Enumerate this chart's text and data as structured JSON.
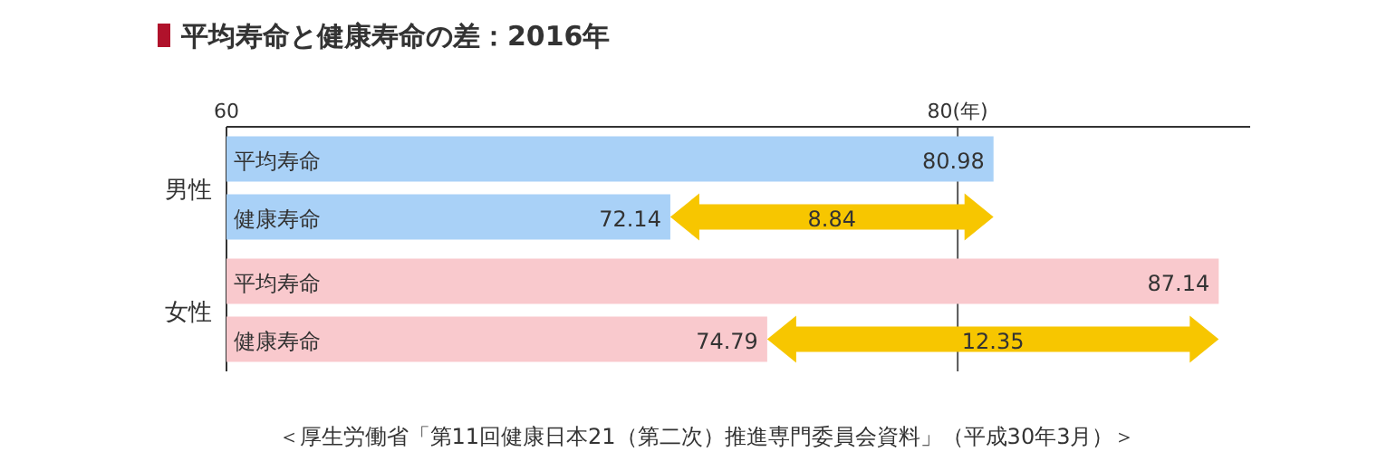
{
  "chart_data": {
    "type": "bar",
    "orientation": "horizontal",
    "title": "平均寿命と健康寿命の差：2016年",
    "categories": [
      "男性",
      "女性"
    ],
    "series": [
      {
        "name": "平均寿命",
        "colors": [
          "#a9d1f7",
          "#f9c9cd"
        ],
        "values": [
          80.98,
          87.14
        ]
      },
      {
        "name": "健康寿命",
        "colors": [
          "#a9d1f7",
          "#f9c9cd"
        ],
        "values": [
          72.14,
          74.79
        ]
      }
    ],
    "xlim": [
      60,
      88
    ],
    "xticks": [
      60,
      {
        "value": 80,
        "label": "80(年)"
      }
    ],
    "grid": "x",
    "data_labels": true,
    "annotations": [
      {
        "text": "8.84",
        "x": 76.56,
        "y": "男性"
      },
      {
        "text": "12.35",
        "x": 80.965,
        "y": "女性"
      },
      "＜厚生労働省「第11回健康日本21（第二次）推進専門委員会資料」（平成30年3月）＞"
    ]
  }
}
